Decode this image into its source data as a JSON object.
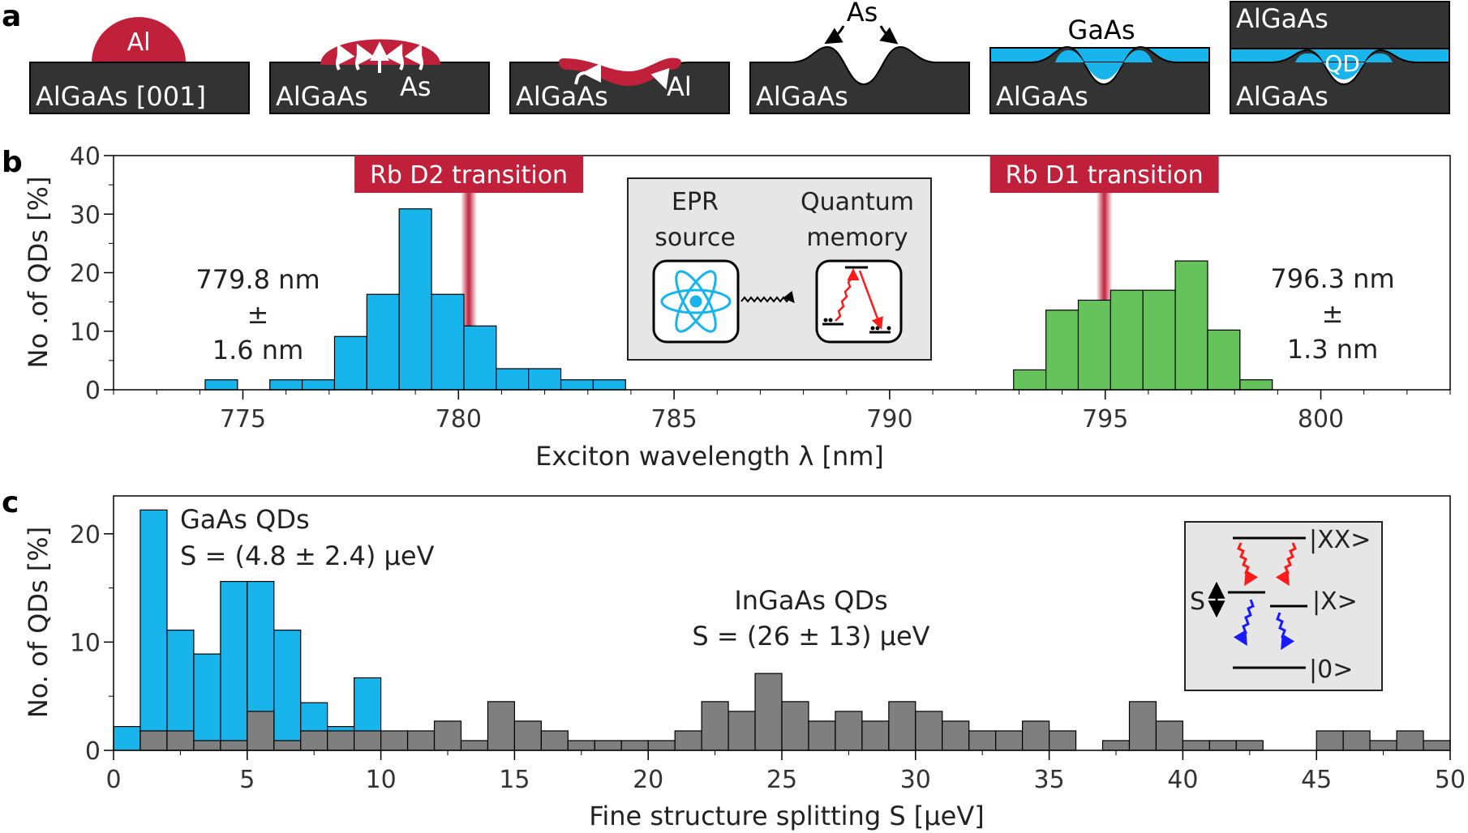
{
  "panel_a": {
    "label": "a",
    "steps": [
      {
        "substrate": "AlGaAs [001]",
        "labels": [
          "Al"
        ]
      },
      {
        "substrate": "AlGaAs",
        "labels": [
          "As"
        ]
      },
      {
        "substrate": "AlGaAs",
        "labels": [
          "Al"
        ]
      },
      {
        "substrate": "AlGaAs",
        "labels": [
          "As"
        ]
      },
      {
        "substrate": "AlGaAs",
        "labels": [
          "GaAs"
        ]
      },
      {
        "substrate": "AlGaAs",
        "labels": [
          "AlGaAs",
          "QD"
        ]
      }
    ],
    "colors": {
      "substrate": "#333333",
      "aluminium": "#c0203a",
      "gaas": "#18b4ec"
    }
  },
  "chart_data": [
    {
      "panel": "b",
      "type": "bar",
      "xlabel": "Exciton wavelength λ [nm]",
      "ylabel": "No .of QDs [%]",
      "xlim": [
        772,
        803
      ],
      "ylim": [
        0,
        40
      ],
      "xticks": [
        775,
        780,
        785,
        790,
        795,
        800
      ],
      "yticks": [
        0,
        10,
        20,
        30,
        40
      ],
      "bin_width": 0.75,
      "series": [
        {
          "color": "#18b4ec",
          "x": [
            774.5,
            776.0,
            776.75,
            777.5,
            778.25,
            779.0,
            779.75,
            780.5,
            781.25,
            782.0,
            782.75,
            783.5
          ],
          "values": [
            1.7,
            1.7,
            1.7,
            9.1,
            16.3,
            30.9,
            16.3,
            10.9,
            3.6,
            3.6,
            1.7,
            1.7
          ]
        },
        {
          "color": "#66c35c",
          "x": [
            793.25,
            794.0,
            794.75,
            795.5,
            796.25,
            797.0,
            797.75,
            798.5
          ],
          "values": [
            3.4,
            13.6,
            15.3,
            17.0,
            17.0,
            22.0,
            10.2,
            1.7
          ]
        }
      ],
      "transitions": [
        {
          "label": "Rb D2 transition",
          "x": 780.24
        },
        {
          "label": "Rb D1 transition",
          "x": 794.98
        }
      ],
      "annotations": [
        {
          "lines": [
            "779.8 nm",
            "±",
            "1.6 nm"
          ]
        },
        {
          "lines": [
            "796.3 nm",
            "±",
            "1.3 nm"
          ]
        }
      ],
      "inset": {
        "labels": [
          [
            "EPR",
            "source"
          ],
          [
            "Quantum",
            "memory"
          ]
        ]
      }
    },
    {
      "panel": "c",
      "type": "bar",
      "xlabel": "Fine structure splitting S [μeV]",
      "ylabel": "No. of QDs [%]",
      "xlim": [
        0,
        50
      ],
      "ylim": [
        0,
        23.5
      ],
      "xticks": [
        0,
        5,
        10,
        15,
        20,
        25,
        30,
        35,
        40,
        45,
        50
      ],
      "yticks": [
        0,
        10,
        20
      ],
      "bin_width": 1,
      "series": [
        {
          "color": "#18b4ec",
          "x": [
            0.5,
            1.5,
            2.5,
            3.5,
            4.5,
            5.5,
            6.5,
            7.5,
            8.5,
            9.5
          ],
          "values": [
            2.2,
            22.2,
            11.1,
            8.9,
            15.6,
            15.6,
            11.1,
            4.4,
            2.2,
            6.7
          ]
        },
        {
          "color": "#7f7f7f",
          "x": [
            1.5,
            2.5,
            3.5,
            4.5,
            5.5,
            6.5,
            7.5,
            8.5,
            9.5,
            10.5,
            11.5,
            12.5,
            13.5,
            14.5,
            15.5,
            16.5,
            17.5,
            18.5,
            19.5,
            20.5,
            21.5,
            22.5,
            23.5,
            24.5,
            25.5,
            26.5,
            27.5,
            28.5,
            29.5,
            30.5,
            31.5,
            32.5,
            33.5,
            34.5,
            35.5,
            37.5,
            38.5,
            39.5,
            40.5,
            41.5,
            42.5,
            45.5,
            46.5,
            47.5,
            48.5,
            49.5
          ],
          "values": [
            1.8,
            1.8,
            0.9,
            0.9,
            3.6,
            0.9,
            1.8,
            1.8,
            1.8,
            1.8,
            1.8,
            2.7,
            0.9,
            4.5,
            2.7,
            1.8,
            0.9,
            0.9,
            0.9,
            0.9,
            1.8,
            4.5,
            3.6,
            7.1,
            4.5,
            2.7,
            3.6,
            2.7,
            4.5,
            3.6,
            2.7,
            1.8,
            1.8,
            2.7,
            1.8,
            0.9,
            4.5,
            2.7,
            0.9,
            0.9,
            0.9,
            1.8,
            1.8,
            0.9,
            1.8,
            0.9
          ]
        }
      ],
      "annotations": [
        {
          "lines": [
            "GaAs QDs",
            "S = (4.8 ± 2.4) μeV"
          ]
        },
        {
          "lines": [
            "InGaAs QDs",
            "S = (26 ± 13) μeV"
          ]
        }
      ],
      "inset": {
        "levels": [
          "|XX>",
          "|X>",
          "|0>"
        ],
        "split_label": "S"
      }
    }
  ]
}
